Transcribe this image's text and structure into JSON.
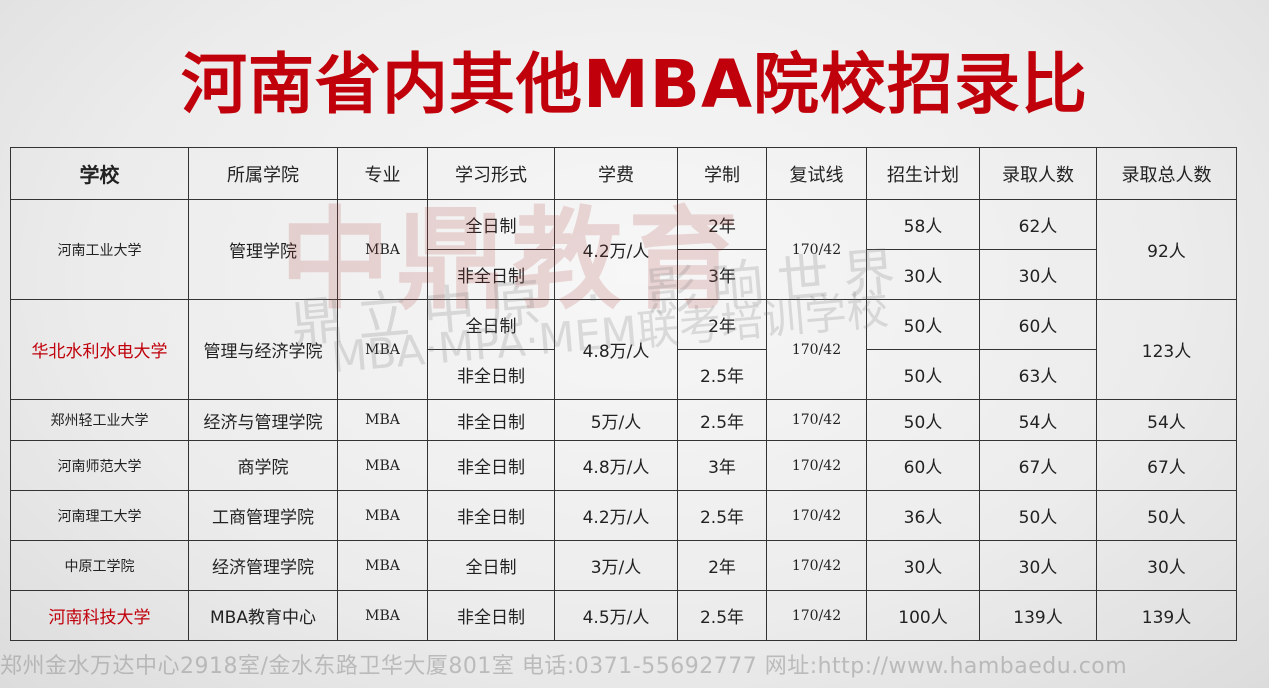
{
  "title": "河南省内其他MBA院校招录比",
  "watermark": {
    "brand": "中鼎教育",
    "slogan": "鼎立中原 · 影响世界",
    "subtitle": "MBA·MPA·MEM联考培训学校"
  },
  "headers": [
    "学校",
    "所属学院",
    "专业",
    "学习形式",
    "学费",
    "学制",
    "复试线",
    "招生计划",
    "录取人数",
    "录取总人数"
  ],
  "rows": [
    {
      "school": "河南工业大学",
      "college": "管理学院",
      "major": "MBA",
      "fee": "4.2万/人",
      "line": "170/42",
      "total": "92人",
      "sub": [
        {
          "form": "全日制",
          "years": "2年",
          "plan": "58人",
          "admit": "62人"
        },
        {
          "form": "非全日制",
          "years": "3年",
          "plan": "30人",
          "admit": "30人"
        }
      ]
    },
    {
      "school": "华北水利水电大学",
      "college": "管理与经济学院",
      "major": "MBA",
      "fee": "4.8万/人",
      "line": "170/42",
      "total": "123人",
      "sub": [
        {
          "form": "全日制",
          "years": "2年",
          "plan": "50人",
          "admit": "60人"
        },
        {
          "form": "非全日制",
          "years": "2.5年",
          "plan": "50人",
          "admit": "63人"
        }
      ]
    },
    {
      "school": "郑州轻工业大学",
      "college": "经济与管理学院",
      "major": "MBA",
      "form": "非全日制",
      "fee": "5万/人",
      "years": "2.5年",
      "line": "170/42",
      "plan": "50人",
      "admit": "54人",
      "total": "54人"
    },
    {
      "school": "河南师范大学",
      "college": "商学院",
      "major": "MBA",
      "form": "非全日制",
      "fee": "4.8万/人",
      "years": "3年",
      "line": "170/42",
      "plan": "60人",
      "admit": "67人",
      "total": "67人"
    },
    {
      "school": "河南理工大学",
      "college": "工商管理学院",
      "major": "MBA",
      "form": "非全日制",
      "fee": "4.2万/人",
      "years": "2.5年",
      "line": "170/42",
      "plan": "36人",
      "admit": "50人",
      "total": "50人"
    },
    {
      "school": "中原工学院",
      "college": "经济管理学院",
      "major": "MBA",
      "form": "全日制",
      "fee": "3万/人",
      "years": "2年",
      "line": "170/42",
      "plan": "30人",
      "admit": "30人",
      "total": "30人"
    },
    {
      "school": "河南科技大学",
      "college": "MBA教育中心",
      "major": "MBA",
      "form": "非全日制",
      "fee": "4.5万/人",
      "years": "2.5年",
      "line": "170/42",
      "plan": "100人",
      "admit": "139人",
      "total": "139人"
    }
  ],
  "footer": "郑州金水万达中心2918室/金水东路卫华大厦801室  电话:0371-55692777  网址:http://www.hambaedu.com",
  "colors": {
    "title": "#c0000a",
    "highlight_school": "#c0000a"
  }
}
